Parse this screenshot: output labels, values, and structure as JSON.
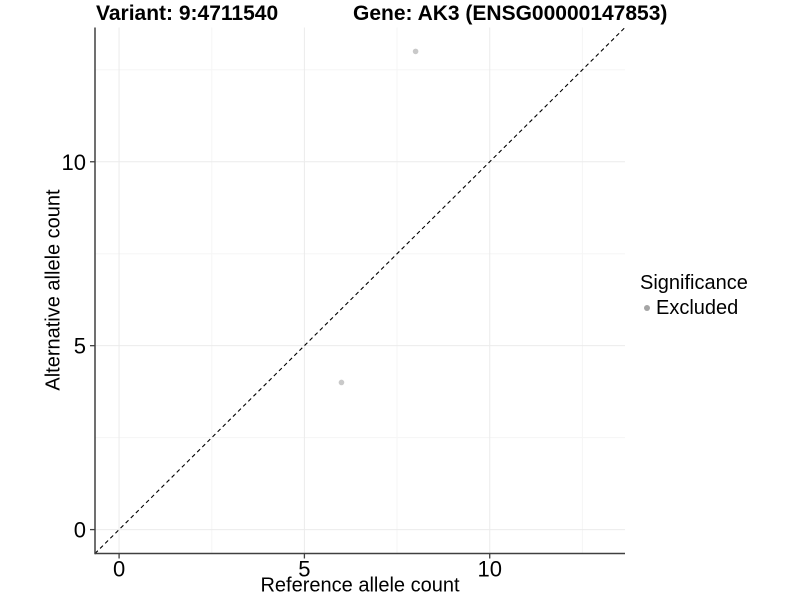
{
  "chart_data": {
    "type": "scatter",
    "title_variant": "Variant: 9:4711540",
    "title_gene": "Gene: AK3 (ENSG00000147853)",
    "xlabel": "Reference allele count",
    "ylabel": "Alternative allele count",
    "xlim": [
      -0.65,
      13.65
    ],
    "ylim": [
      -0.65,
      13.65
    ],
    "x_ticks": [
      0,
      5,
      10
    ],
    "y_ticks": [
      0,
      5,
      10
    ],
    "x_minor_ticks": [
      2.5,
      7.5,
      12.5
    ],
    "y_minor_ticks": [
      2.5,
      7.5,
      12.5
    ],
    "grid": true,
    "points": [
      {
        "x": 8,
        "y": 13,
        "significance": "Excluded"
      },
      {
        "x": 6,
        "y": 4,
        "significance": "Excluded"
      }
    ],
    "point_color": "#c9c9c9",
    "identity_line": {
      "style": "dashed",
      "color": "#000000",
      "slope": 1,
      "intercept": 0
    },
    "legend": {
      "position": "right",
      "title": "Significance",
      "items": [
        {
          "label": "Excluded",
          "color": "#a5a5a5"
        }
      ]
    },
    "colors": {
      "axis_line": "#404040",
      "tick_label": "#000000",
      "major_grid": "#ebebeb",
      "minor_grid": "#f5f5f5"
    }
  }
}
